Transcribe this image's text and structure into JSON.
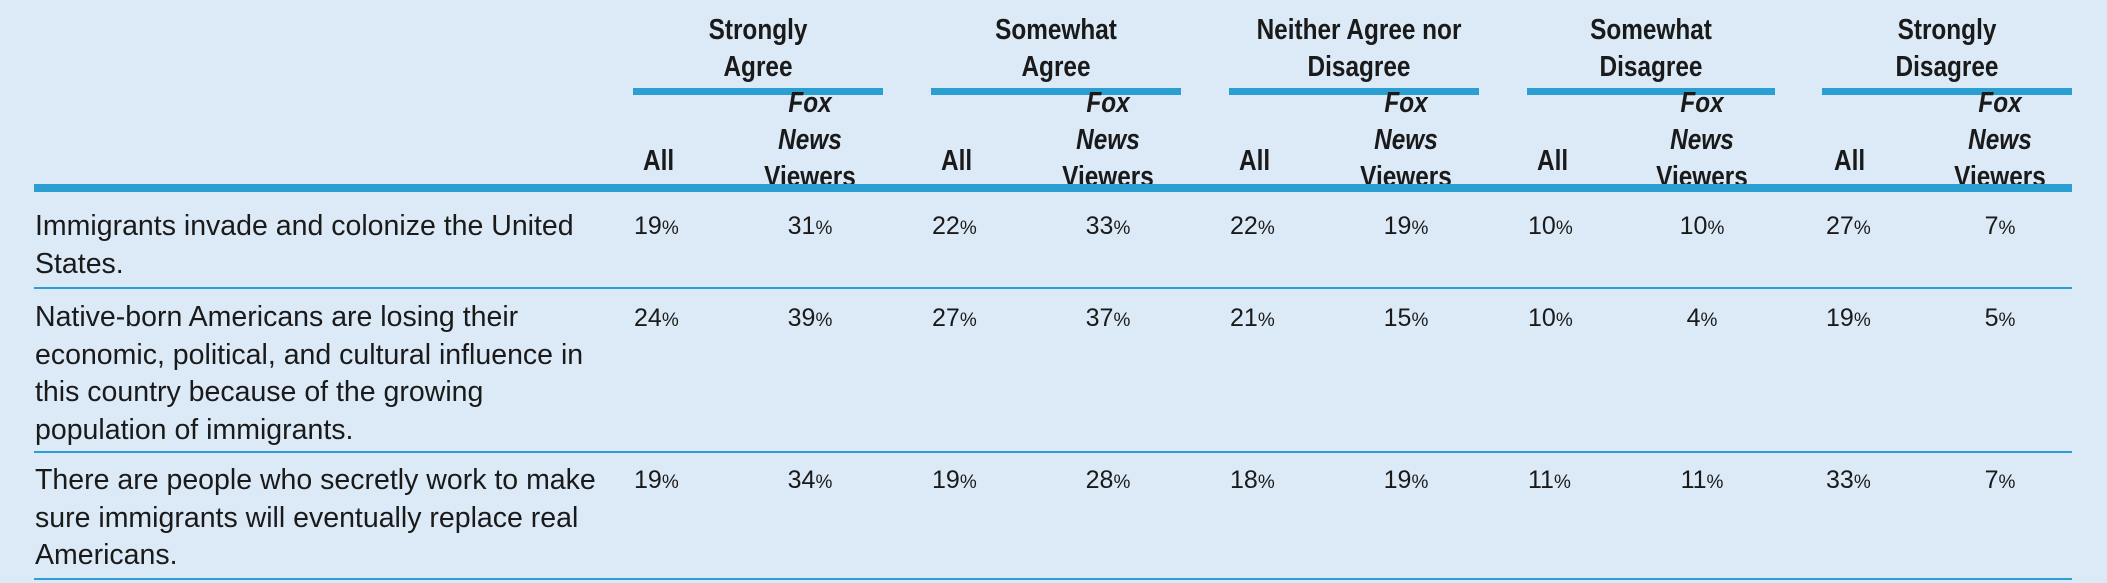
{
  "table": {
    "groups": [
      {
        "label": "Strongly\nAgree"
      },
      {
        "label": "Somewhat\nAgree"
      },
      {
        "label": "Neither Agree nor\nDisagree"
      },
      {
        "label": "Somewhat\nDisagree"
      },
      {
        "label": "Strongly\nDisagree"
      }
    ],
    "sub_all": "All",
    "sub_fox_1": "Fox News",
    "sub_fox_2": "Viewers",
    "pct_sign": "%",
    "rows": [
      {
        "statement": "Immigrants invade and colonize the United States.",
        "values": [
          19,
          31,
          22,
          33,
          22,
          19,
          10,
          10,
          27,
          7
        ]
      },
      {
        "statement": "Native-born Americans are losing their economic, political, and cultural influence in this country because of the growing population of immigrants.",
        "values": [
          24,
          39,
          27,
          37,
          21,
          15,
          10,
          4,
          19,
          5
        ]
      },
      {
        "statement": "There are people who secretly work to make sure immigrants will eventually replace real Americans.",
        "values": [
          19,
          34,
          19,
          28,
          18,
          19,
          11,
          11,
          33,
          7
        ]
      }
    ],
    "accent_color": "#2b9fd2",
    "background_color": "#dce9f6"
  },
  "chart_data": {
    "type": "table",
    "columns": [
      "Strongly Agree - All",
      "Strongly Agree - Fox News Viewers",
      "Somewhat Agree - All",
      "Somewhat Agree - Fox News Viewers",
      "Neither Agree nor Disagree - All",
      "Neither Agree nor Disagree - Fox News Viewers",
      "Somewhat Disagree - All",
      "Somewhat Disagree - Fox News Viewers",
      "Strongly Disagree - All",
      "Strongly Disagree - Fox News Viewers"
    ],
    "rows": [
      {
        "label": "Immigrants invade and colonize the United States.",
        "values": [
          19,
          31,
          22,
          33,
          22,
          19,
          10,
          10,
          27,
          7
        ]
      },
      {
        "label": "Native-born Americans are losing their economic, political, and cultural influence in this country because of the growing population of immigrants.",
        "values": [
          24,
          39,
          27,
          37,
          21,
          15,
          10,
          4,
          19,
          5
        ]
      },
      {
        "label": "There are people who secretly work to make sure immigrants will eventually replace real Americans.",
        "values": [
          19,
          34,
          19,
          28,
          18,
          19,
          11,
          11,
          33,
          7
        ]
      }
    ],
    "unit": "%"
  }
}
